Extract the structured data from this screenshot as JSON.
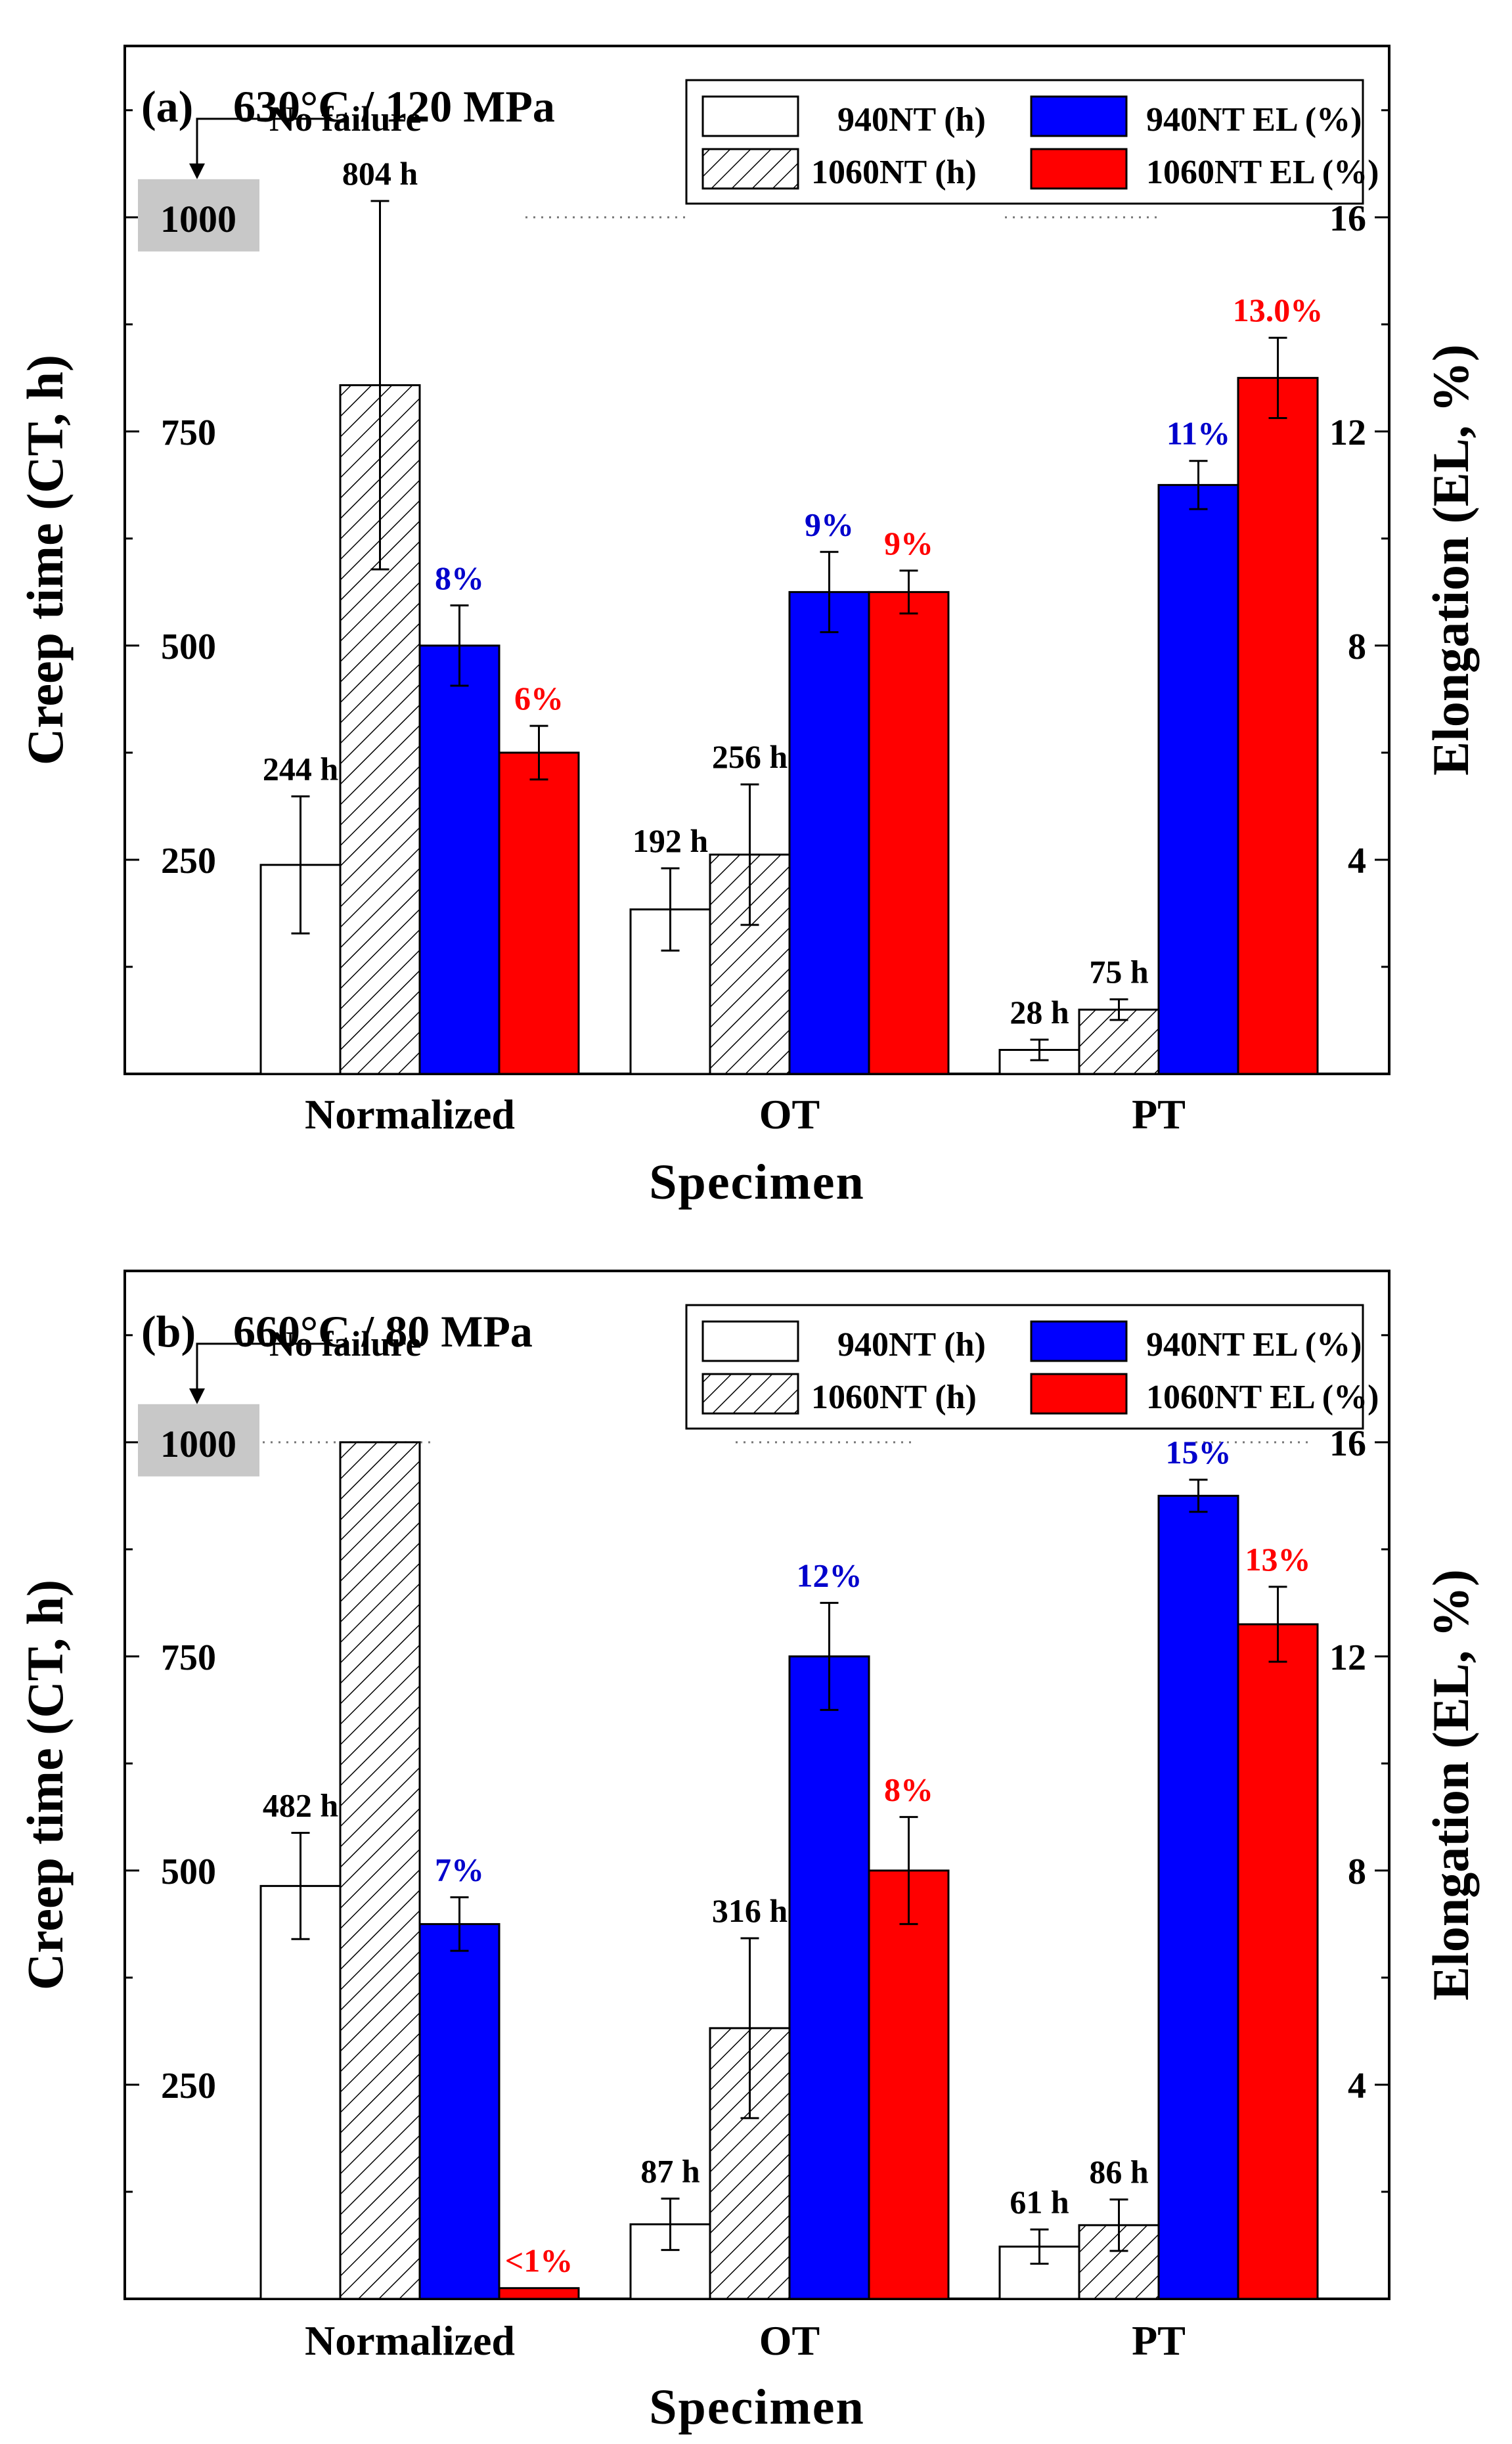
{
  "colors": {
    "ct_940": "#ffffff",
    "ct_1060": "hatch",
    "el_940": "#0000ff",
    "el_1060": "#ff0000",
    "label_dark": "#000000",
    "label_blue": "#0000cc",
    "label_red": "#ff0000",
    "nofail_box": "#c8c8c8"
  },
  "chart_data": [
    {
      "type": "bar",
      "panel_label": "(a)",
      "title": "630°C / 120 MPa",
      "xlabel": "Specimen",
      "ylabel_left": "Creep time (CT, h)",
      "ylabel_right": "Elongation (EL, %)",
      "categories": [
        "Normalized",
        "OT",
        "PT"
      ],
      "ylim_left": [
        0,
        1200
      ],
      "ylim_right": [
        0,
        19.2
      ],
      "yticks_left": [
        250,
        500,
        750,
        1000
      ],
      "yticks_right": [
        4,
        8,
        12,
        16
      ],
      "no_failure_note": "No failure",
      "no_failure_value": "1000",
      "reference_line": 1000,
      "legend": [
        "940NT (h)",
        "1060NT (h)",
        "940NT EL (%)",
        "1060NT EL (%)"
      ],
      "series": [
        {
          "name": "940NT (h)",
          "axis": "left",
          "values": [
            244,
            192,
            28
          ],
          "errors": [
            80,
            48,
            12
          ],
          "labels": [
            "244 h",
            "192 h",
            "28 h"
          ]
        },
        {
          "name": "1060NT (h)",
          "axis": "left",
          "values": [
            804,
            256,
            75
          ],
          "errors": [
            215,
            82,
            12
          ],
          "labels": [
            "804 h",
            "256 h",
            "75 h"
          ]
        },
        {
          "name": "940NT EL (%)",
          "axis": "right",
          "values": [
            8,
            9,
            11
          ],
          "errors": [
            0.75,
            0.75,
            0.45
          ],
          "labels": [
            "8%",
            "9%",
            "11%"
          ]
        },
        {
          "name": "1060NT EL (%)",
          "axis": "right",
          "values": [
            6,
            9,
            13
          ],
          "errors": [
            0.5,
            0.4,
            0.75
          ],
          "labels": [
            "6%",
            "9%",
            "13.0%"
          ]
        }
      ]
    },
    {
      "type": "bar",
      "panel_label": "(b)",
      "title": "660°C / 80 MPa",
      "xlabel": "Specimen",
      "ylabel_left": "Creep time (CT, h)",
      "ylabel_right": "Elongation (EL, %)",
      "categories": [
        "Normalized",
        "OT",
        "PT"
      ],
      "ylim_left": [
        0,
        1200
      ],
      "ylim_right": [
        0,
        19.2
      ],
      "yticks_left": [
        250,
        500,
        750,
        1000
      ],
      "yticks_right": [
        4,
        8,
        12,
        16
      ],
      "no_failure_note": "No failure",
      "no_failure_value": "1000",
      "reference_line": 1000,
      "legend": [
        "940NT (h)",
        "1060NT (h)",
        "940NT EL (%)",
        "1060NT EL (%)"
      ],
      "series": [
        {
          "name": "940NT (h)",
          "axis": "left",
          "values": [
            482,
            87,
            61
          ],
          "errors": [
            62,
            30,
            20
          ],
          "labels": [
            "482 h",
            "87 h",
            "61 h"
          ]
        },
        {
          "name": "1060NT (h)",
          "axis": "left",
          "values": [
            1000,
            316,
            86
          ],
          "errors": [
            0,
            105,
            30
          ],
          "labels": [
            "",
            "316 h",
            "86 h"
          ]
        },
        {
          "name": "940NT EL (%)",
          "axis": "right",
          "values": [
            7,
            12,
            15
          ],
          "errors": [
            0.5,
            1.0,
            0.3
          ],
          "labels": [
            "7%",
            "12%",
            "15%"
          ]
        },
        {
          "name": "1060NT EL (%)",
          "axis": "right",
          "values": [
            0.2,
            8,
            12.6
          ],
          "errors": [
            0,
            1.0,
            0.7
          ],
          "labels": [
            "<1%",
            "8%",
            "13%"
          ]
        }
      ]
    }
  ]
}
